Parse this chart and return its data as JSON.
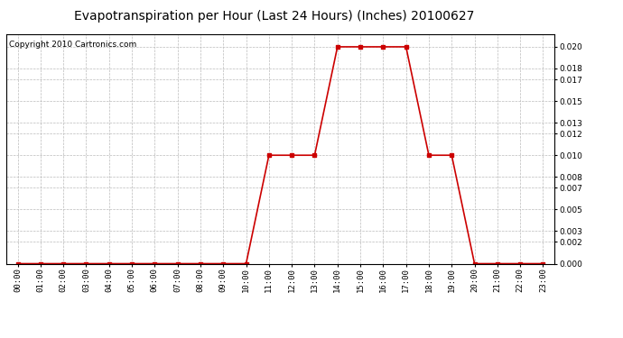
{
  "title": "Evapotranspiration per Hour (Last 24 Hours) (Inches) 20100627",
  "copyright": "Copyright 2010 Cartronics.com",
  "hours": [
    "00:00",
    "01:00",
    "02:00",
    "03:00",
    "04:00",
    "05:00",
    "06:00",
    "07:00",
    "08:00",
    "09:00",
    "10:00",
    "11:00",
    "12:00",
    "13:00",
    "14:00",
    "15:00",
    "16:00",
    "17:00",
    "18:00",
    "19:00",
    "20:00",
    "21:00",
    "22:00",
    "23:00"
  ],
  "values": [
    0.0,
    0.0,
    0.0,
    0.0,
    0.0,
    0.0,
    0.0,
    0.0,
    0.0,
    0.0,
    0.0,
    0.01,
    0.01,
    0.01,
    0.02,
    0.02,
    0.02,
    0.02,
    0.01,
    0.01,
    0.0,
    0.0,
    0.0,
    0.0
  ],
  "line_color": "#cc0000",
  "marker": "s",
  "marker_size": 2.5,
  "line_width": 1.2,
  "background_color": "#ffffff",
  "plot_bg_color": "#ffffff",
  "grid_color": "#bbbbbb",
  "title_fontsize": 10,
  "copyright_fontsize": 6.5,
  "tick_fontsize": 6.5,
  "ylim": [
    0.0,
    0.0212
  ],
  "yticks": [
    0.0,
    0.002,
    0.003,
    0.005,
    0.007,
    0.008,
    0.01,
    0.012,
    0.013,
    0.015,
    0.017,
    0.018,
    0.02
  ]
}
